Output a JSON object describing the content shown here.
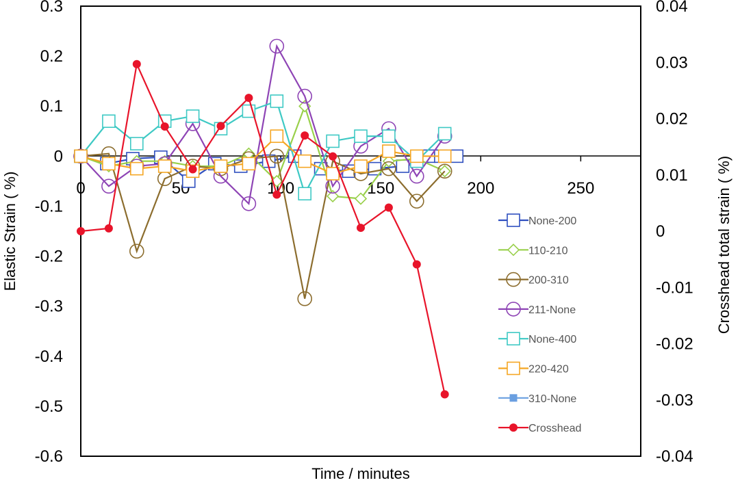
{
  "chart_data": {
    "type": "line",
    "xlabel": "Time / minutes",
    "ylabel": "Elastic Strain ( %)",
    "y2label": "Crosshead total strain ( %)",
    "xlim": [
      0,
      280
    ],
    "ylim": [
      -0.6,
      0.3
    ],
    "y2lim": [
      -0.04,
      0.04
    ],
    "x_ticks": [
      "0",
      "50",
      "100",
      "150",
      "200",
      "250"
    ],
    "y_ticks": [
      "0.3",
      "0.2",
      "0.1",
      "0",
      "-0.1",
      "-0.2",
      "-0.3",
      "-0.4",
      "-0.5",
      "-0.6"
    ],
    "y2_ticks": [
      "0.04",
      "0.03",
      "0.02",
      "0.01",
      "0",
      "-0.01",
      "-0.02",
      "-0.03",
      "-0.04"
    ],
    "legend_position": "right",
    "series": [
      {
        "name": "None-200",
        "color": "#2f4fbf",
        "marker": "square",
        "axis": "left",
        "x": [
          0,
          13,
          26,
          40,
          54,
          67,
          80,
          94,
          107,
          120,
          134,
          147,
          161,
          174,
          180,
          188
        ],
        "y": [
          0.0,
          -0.015,
          -0.005,
          -0.002,
          -0.05,
          -0.015,
          -0.02,
          -0.01,
          0.0,
          -0.025,
          -0.03,
          -0.025,
          -0.02,
          0.0,
          0.0,
          0.0
        ]
      },
      {
        "name": "110-210",
        "color": "#99d04a",
        "marker": "diamond",
        "axis": "left",
        "x": [
          0,
          14,
          28,
          42,
          56,
          70,
          84,
          98,
          112,
          126,
          140,
          154,
          168,
          182
        ],
        "y": [
          0.0,
          -0.02,
          -0.01,
          -0.01,
          -0.02,
          -0.02,
          0.005,
          -0.05,
          0.1,
          -0.08,
          -0.085,
          -0.01,
          -0.005,
          -0.03
        ]
      },
      {
        "name": "200-310",
        "color": "#8c6d2e",
        "marker": "circle",
        "axis": "left",
        "x": [
          0,
          14,
          28,
          42,
          56,
          70,
          84,
          98,
          112,
          126,
          140,
          154,
          168,
          182
        ],
        "y": [
          0.0,
          0.005,
          -0.19,
          -0.045,
          -0.02,
          -0.025,
          -0.005,
          0.0,
          -0.285,
          -0.01,
          -0.035,
          -0.025,
          -0.09,
          -0.03
        ]
      },
      {
        "name": "211-None",
        "color": "#8e44b5",
        "marker": "circle",
        "axis": "left",
        "x": [
          0,
          14,
          28,
          42,
          56,
          70,
          84,
          98,
          112,
          126,
          140,
          154,
          168,
          182
        ],
        "y": [
          0.0,
          -0.06,
          -0.02,
          -0.015,
          0.065,
          -0.04,
          -0.095,
          0.22,
          0.12,
          -0.06,
          0.02,
          0.055,
          -0.04,
          0.04
        ]
      },
      {
        "name": "None-400",
        "color": "#3ec9c4",
        "marker": "square",
        "axis": "left",
        "x": [
          0,
          14,
          28,
          42,
          56,
          70,
          84,
          98,
          112,
          126,
          140,
          154,
          168,
          182
        ],
        "y": [
          0.0,
          0.07,
          0.025,
          0.07,
          0.08,
          0.055,
          0.09,
          0.11,
          -0.075,
          0.03,
          0.04,
          0.04,
          -0.01,
          0.045
        ]
      },
      {
        "name": "220-420",
        "color": "#f5a623",
        "marker": "square",
        "axis": "left",
        "x": [
          0,
          14,
          28,
          42,
          56,
          70,
          84,
          98,
          112,
          126,
          140,
          154,
          168,
          182
        ],
        "y": [
          0.0,
          -0.015,
          -0.025,
          -0.02,
          -0.03,
          -0.02,
          -0.015,
          0.04,
          -0.01,
          -0.035,
          -0.02,
          0.01,
          0.0,
          0.0
        ]
      },
      {
        "name": "310-None",
        "color": "#6a9fe0",
        "marker": "filled-square",
        "axis": "left",
        "x": [],
        "y": []
      },
      {
        "name": "Crosshead",
        "color": "#e8142a",
        "marker": "filled-circle",
        "axis": "right",
        "x": [
          0,
          14,
          28,
          42,
          56,
          70,
          84,
          98,
          112,
          126,
          140,
          154,
          168,
          182
        ],
        "y": [
          0.0,
          0.0005,
          0.0297,
          0.0186,
          0.011,
          0.0187,
          0.0237,
          0.0065,
          0.017,
          0.0133,
          0.0006,
          0.0042,
          -0.0059,
          -0.029
        ]
      }
    ]
  }
}
